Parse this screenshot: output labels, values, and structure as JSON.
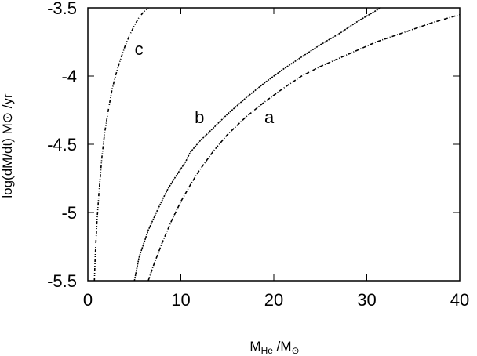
{
  "chart_data": {
    "type": "line",
    "xlabel": {
      "main": "M",
      "sub": "He",
      "suffix": " /M",
      "sym": "⊙"
    },
    "ylabel": "log(dM/dt) M⊙ /yr",
    "xlim": [
      0,
      40
    ],
    "ylim": [
      -5.5,
      -3.5
    ],
    "x_ticks": [
      0,
      10,
      20,
      30,
      40
    ],
    "x_tick_labels": [
      "0",
      "10",
      "20",
      "30",
      "40"
    ],
    "y_ticks": [
      -5.5,
      -5,
      -4.5,
      -4,
      -3.5
    ],
    "y_tick_labels": [
      "-5.5",
      "-5",
      "-4.5",
      "-4",
      "-3.5"
    ],
    "grid": false,
    "series": [
      {
        "name": "a",
        "style": "dash-dot",
        "label_at": [
          19.5,
          -4.3
        ],
        "x": [
          6.5,
          7.0,
          8.0,
          9.0,
          10.0,
          11.0,
          12.0,
          13.5,
          15.0,
          17.0,
          19.0,
          21.0,
          23.0,
          25.0,
          28.0,
          31.0,
          34.0,
          37.0,
          40.0
        ],
        "y": [
          -5.5,
          -5.4,
          -5.22,
          -5.06,
          -4.92,
          -4.8,
          -4.69,
          -4.55,
          -4.43,
          -4.3,
          -4.19,
          -4.09,
          -4.0,
          -3.93,
          -3.84,
          -3.75,
          -3.68,
          -3.61,
          -3.55
        ]
      },
      {
        "name": "b",
        "style": "dotted",
        "label_at": [
          12.0,
          -4.3
        ],
        "x": [
          5.0,
          5.5,
          6.5,
          7.5,
          8.5,
          9.5,
          10.5,
          11.0,
          12.0,
          13.5,
          15.0,
          17.0,
          19.0,
          21.0,
          23.0,
          25.0,
          27.0,
          29.0,
          31.5
        ],
        "y": [
          -5.5,
          -5.33,
          -5.13,
          -4.98,
          -4.84,
          -4.73,
          -4.63,
          -4.56,
          -4.48,
          -4.38,
          -4.28,
          -4.16,
          -4.05,
          -3.95,
          -3.86,
          -3.77,
          -3.69,
          -3.6,
          -3.5
        ]
      },
      {
        "name": "c",
        "style": "dash-dot-dot",
        "label_at": [
          5.5,
          -3.8
        ],
        "x": [
          0.7,
          0.8,
          1.0,
          1.2,
          1.5,
          1.8,
          2.2,
          2.6,
          3.0,
          3.5,
          4.0,
          4.5,
          5.0,
          5.5,
          6.0,
          6.5
        ],
        "y": [
          -5.5,
          -5.3,
          -5.05,
          -4.85,
          -4.6,
          -4.42,
          -4.25,
          -4.1,
          -3.99,
          -3.88,
          -3.78,
          -3.7,
          -3.63,
          -3.57,
          -3.53,
          -3.5
        ]
      }
    ]
  }
}
